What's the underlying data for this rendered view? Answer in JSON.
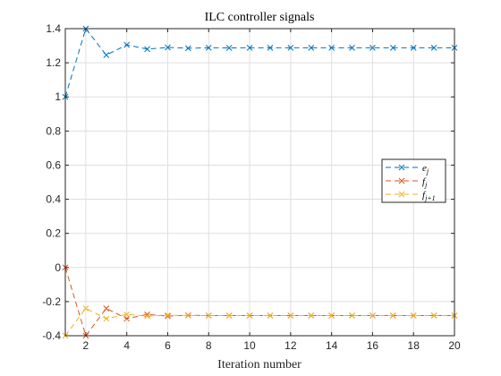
{
  "chart_data": {
    "type": "line",
    "title": "ILC controller signals",
    "xlabel": "Iteration number",
    "ylabel": "",
    "xlim": [
      1,
      20
    ],
    "ylim": [
      -0.4,
      1.4
    ],
    "xticks": [
      2,
      4,
      6,
      8,
      10,
      12,
      14,
      16,
      18,
      20
    ],
    "yticks": [
      -0.4,
      -0.2,
      0,
      0.2,
      0.4,
      0.6,
      0.8,
      1,
      1.2,
      1.4
    ],
    "ytick_labels": [
      "-0.4",
      "-0.2",
      "0",
      "0.2",
      "0.4",
      "0.6",
      "0.8",
      "1",
      "1.2",
      "1.4"
    ],
    "grid": true,
    "legend_position": "right-middle",
    "x": [
      1,
      2,
      3,
      4,
      5,
      6,
      7,
      8,
      9,
      10,
      11,
      12,
      13,
      14,
      15,
      16,
      17,
      18,
      19,
      20
    ],
    "series": [
      {
        "name": "e_j",
        "legend": {
          "base": "e",
          "sub": "j"
        },
        "color": "#0072BD",
        "marker": "x",
        "line": "dashed",
        "values": [
          1.0,
          1.4,
          1.245,
          1.305,
          1.28,
          1.29,
          1.285,
          1.288,
          1.287,
          1.288,
          1.288,
          1.288,
          1.288,
          1.288,
          1.288,
          1.288,
          1.288,
          1.288,
          1.288,
          1.288
        ]
      },
      {
        "name": "f_j",
        "legend": {
          "base": "f",
          "sub": "j"
        },
        "color": "#D95319",
        "marker": "x",
        "line": "dashed",
        "values": [
          0.0,
          -0.4,
          -0.24,
          -0.3,
          -0.275,
          -0.285,
          -0.28,
          -0.282,
          -0.282,
          -0.282,
          -0.282,
          -0.282,
          -0.282,
          -0.282,
          -0.282,
          -0.282,
          -0.282,
          -0.282,
          -0.282,
          -0.282
        ]
      },
      {
        "name": "f_j+1",
        "legend": {
          "base": "f",
          "sub": "j+1"
        },
        "color": "#EDB120",
        "marker": "x",
        "line": "dashed",
        "values": [
          -0.4,
          -0.24,
          -0.3,
          -0.275,
          -0.285,
          -0.28,
          -0.282,
          -0.282,
          -0.282,
          -0.282,
          -0.282,
          -0.282,
          -0.282,
          -0.282,
          -0.282,
          -0.282,
          -0.282,
          -0.282,
          -0.282,
          -0.282
        ]
      }
    ]
  }
}
